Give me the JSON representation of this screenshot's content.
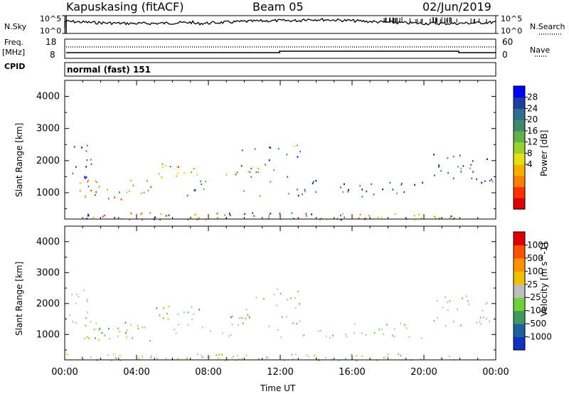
{
  "header": {
    "station": "Kapuskasing (fitACF)",
    "beam": "Beam 05",
    "date": "02/Jun/2019"
  },
  "strip_labels": {
    "nsky": "N.Sky",
    "nsky_hi": "10^5",
    "nsky_lo": "10^0",
    "nsearch": "N.Search",
    "nsearch_hi": "10^5",
    "nsearch_lo": "10^0",
    "freq": "Freq.",
    "freq_unit": "[MHz]",
    "freq_hi": "18",
    "freq_lo": "8",
    "nave": "Nave",
    "nave_hi": "60",
    "nave_lo": "0",
    "cpid": "CPID",
    "cpid_value": "normal (fast) 151"
  },
  "chart_data": [
    {
      "type": "heatmap",
      "title": "",
      "xlabel": "",
      "ylabel": "Slant Range [km]",
      "yticks": [
        1000,
        2000,
        3000,
        4000
      ],
      "ylim": [
        180,
        4500
      ],
      "xlim": [
        0,
        24
      ],
      "colorbar": {
        "label": "Power [dB]",
        "ticks": [
          "28",
          "24",
          "20",
          "16",
          "12",
          "8",
          "4"
        ],
        "colors": [
          "#0000ff",
          "#1f3fa0",
          "#2f6f90",
          "#3a8c6a",
          "#5fb34a",
          "#9bd12c",
          "#e6e010",
          "#f5b000",
          "#ff8000",
          "#ff3000",
          "#e00000"
        ]
      },
      "grid": false
    },
    {
      "type": "heatmap",
      "title": "",
      "xlabel": "Time UT",
      "ylabel": "Slant Range [km]",
      "yticks": [
        1000,
        2000,
        3000,
        4000
      ],
      "ylim": [
        180,
        4500
      ],
      "xlim": [
        0,
        24
      ],
      "xticks": [
        "00:00",
        "04:00",
        "08:00",
        "12:00",
        "16:00",
        "20:00",
        "00:00"
      ],
      "colorbar": {
        "label": "Velocity [m s^-1]",
        "ticks": [
          "1000",
          "500",
          "100",
          "25",
          "-25",
          "-100",
          "-500",
          "-1000"
        ],
        "colors": [
          "#1030c0",
          "#2060a0",
          "#3f9a60",
          "#6ed03a",
          "#bebebe",
          "#f0c000",
          "#ff9000",
          "#ff5000",
          "#e00000"
        ]
      },
      "grid": false
    }
  ],
  "colors": {
    "ground_scatter": "#bebebe",
    "axis": "#000000"
  }
}
